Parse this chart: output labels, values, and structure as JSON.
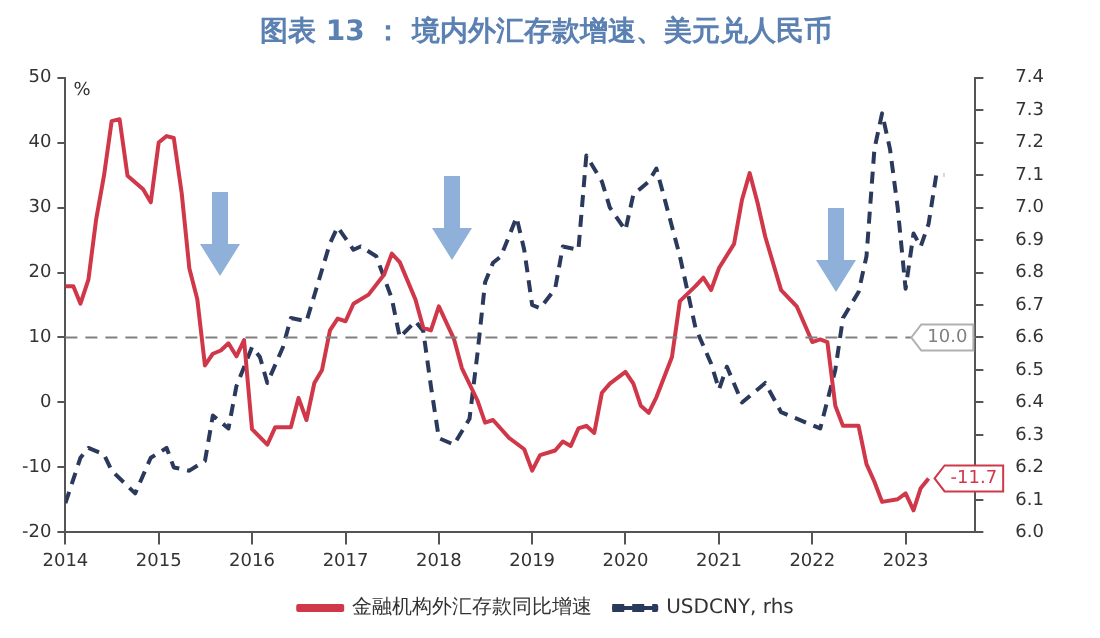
{
  "chart_data": {
    "type": "line",
    "title": "图表 13 ： 境内外汇存款增速、美元兑人民币",
    "ylabel": "%",
    "xlim": [
      "2014-01",
      "2023-10"
    ],
    "xticks": [
      "2014",
      "2015",
      "2016",
      "2017",
      "2018",
      "2019",
      "2020",
      "2021",
      "2022",
      "2023"
    ],
    "ylim": [
      -20,
      50
    ],
    "yticks": [
      -20,
      -10,
      0,
      10,
      20,
      30,
      40,
      50
    ],
    "y2lim": [
      6.0,
      7.4
    ],
    "y2ticks": [
      {
        "value": 6,
        "label": "6.0"
      },
      6.1,
      6.2,
      6.3,
      6.4,
      6.5,
      6.6,
      6.7,
      6.8,
      6.9,
      {
        "value": 7,
        "label": "7.0"
      },
      7.1,
      7.2,
      7.3,
      7.4
    ],
    "grid": false,
    "legend": "bottom",
    "marker": "none",
    "ref_lines": [
      {
        "axis": "y",
        "value": 10,
        "label": "10.0",
        "color": "#808080",
        "line_style": "dashed"
      }
    ],
    "series": [
      {
        "name": "金融机构外汇存款同比增速",
        "color": "#d0384a",
        "line_style": "solid",
        "x": [
          "2014-01",
          "2014-02",
          "2014-03",
          "2014-04",
          "2014-05",
          "2014-06",
          "2014-07",
          "2014-08",
          "2014-09",
          "2014-11",
          "2014-12",
          "2015-01",
          "2015-02",
          "2015-03",
          "2015-04",
          "2015-05",
          "2015-06",
          "2015-07",
          "2015-08",
          "2015-09",
          "2015-10",
          "2015-11",
          "2015-12",
          "2016-01",
          "2016-03",
          "2016-04",
          "2016-06",
          "2016-07",
          "2016-08",
          "2016-09",
          "2016-10",
          "2016-11",
          "2016-12",
          "2017-01",
          "2017-02",
          "2017-04",
          "2017-06",
          "2017-07",
          "2017-08",
          "2017-10",
          "2017-11",
          "2017-12",
          "2018-01",
          "2018-03",
          "2018-04",
          "2018-06",
          "2018-07",
          "2018-08",
          "2018-10",
          "2018-12",
          "2019-01",
          "2019-02",
          "2019-04",
          "2019-05",
          "2019-06",
          "2019-07",
          "2019-08",
          "2019-09",
          "2019-10",
          "2019-11",
          "2020-01",
          "2020-02",
          "2020-03",
          "2020-04",
          "2020-05",
          "2020-07",
          "2020-08",
          "2020-10",
          "2020-11",
          "2020-12",
          "2021-01",
          "2021-03",
          "2021-04",
          "2021-05",
          "2021-06",
          "2021-07",
          "2021-09",
          "2021-11",
          "2022-01",
          "2022-02",
          "2022-03",
          "2022-04",
          "2022-05",
          "2022-07",
          "2022-08",
          "2022-09",
          "2022-10",
          "2022-12",
          "2023-01",
          "2023-02",
          "2023-03",
          "2023-04"
        ],
        "values": [
          17.9,
          17.9,
          15.2,
          18.9,
          28.1,
          34.9,
          43.3,
          43.6,
          34.9,
          32.8,
          30.8,
          40.0,
          41.0,
          40.7,
          32.2,
          20.6,
          15.9,
          5.7,
          7.5,
          8.0,
          9.1,
          7.1,
          9.6,
          -4.1,
          -6.5,
          -3.8,
          -3.8,
          0.7,
          -2.7,
          3.0,
          5.0,
          11.1,
          12.9,
          12.5,
          15.2,
          16.6,
          19.7,
          22.9,
          21.6,
          15.9,
          11.5,
          11.1,
          14.8,
          9.8,
          5.3,
          0.3,
          -3.1,
          -2.7,
          -5.4,
          -7.2,
          -10.5,
          -8.1,
          -7.4,
          -6.0,
          -6.7,
          -4.0,
          -3.6,
          -4.7,
          1.5,
          2.9,
          4.7,
          2.9,
          -0.5,
          -1.6,
          0.8,
          7.0,
          15.6,
          17.9,
          19.2,
          17.3,
          20.7,
          24.4,
          31.2,
          35.3,
          30.7,
          25.5,
          17.3,
          14.8,
          9.3,
          9.7,
          9.3,
          -0.5,
          -3.6,
          -3.6,
          -9.5,
          -12.2,
          -15.3,
          -14.9,
          -14.0,
          -16.6,
          -13.2,
          -11.7
        ],
        "value_labels": [
          null,
          null,
          null,
          null,
          null,
          null,
          null,
          null,
          null,
          null,
          null,
          null,
          null,
          null,
          null,
          null,
          null,
          null,
          null,
          null,
          null,
          null,
          null,
          null,
          null,
          null,
          null,
          null,
          null,
          null,
          null,
          null,
          null,
          null,
          null,
          null,
          null,
          null,
          null,
          null,
          null,
          null,
          null,
          null,
          null,
          null,
          null,
          null,
          null,
          null,
          null,
          null,
          null,
          null,
          null,
          null,
          null,
          null,
          null,
          null,
          null,
          null,
          null,
          null,
          null,
          null,
          null,
          null,
          null,
          null,
          null,
          null,
          null,
          null,
          null,
          null,
          null,
          null,
          null,
          null,
          null,
          null,
          null,
          null,
          null,
          null,
          null,
          null,
          null,
          null,
          null,
          "-11.7"
        ]
      },
      {
        "name": "USDCNY, rhs",
        "color": "#2b3a5c",
        "line_style": "dashed",
        "axis": "y2",
        "x": [
          "2014-01",
          "2014-03",
          "2014-04",
          "2014-06",
          "2014-07",
          "2014-10",
          "2014-12",
          "2015-02",
          "2015-03",
          "2015-05",
          "2015-07",
          "2015-08",
          "2015-10",
          "2015-11",
          "2016-01",
          "2016-02",
          "2016-03",
          "2016-05",
          "2016-06",
          "2016-08",
          "2016-09",
          "2016-11",
          "2016-12",
          "2017-02",
          "2017-03",
          "2017-05",
          "2017-07",
          "2017-08",
          "2017-10",
          "2017-11",
          "2017-12",
          "2018-01",
          "2018-03",
          "2018-05",
          "2018-06",
          "2018-07",
          "2018-08",
          "2018-09",
          "2018-11",
          "2018-12",
          "2019-01",
          "2019-02",
          "2019-04",
          "2019-05",
          "2019-07",
          "2019-08",
          "2019-10",
          "2019-11",
          "2020-01",
          "2020-02",
          "2020-04",
          "2020-05",
          "2020-06",
          "2020-08",
          "2020-10",
          "2020-12",
          "2021-01",
          "2021-02",
          "2021-04",
          "2021-06",
          "2021-07",
          "2021-09",
          "2021-11",
          "2022-01",
          "2022-02",
          "2022-04",
          "2022-05",
          "2022-07",
          "2022-08",
          "2022-09",
          "2022-10",
          "2022-11",
          "2022-12",
          "2023-01",
          "2023-02",
          "2023-03",
          "2023-04",
          "2023-05",
          "2023-06"
        ],
        "values": [
          6.09,
          6.23,
          6.26,
          6.24,
          6.19,
          6.12,
          6.23,
          6.26,
          6.2,
          6.19,
          6.22,
          6.36,
          6.32,
          6.45,
          6.57,
          6.54,
          6.46,
          6.57,
          6.66,
          6.65,
          6.73,
          6.89,
          6.94,
          6.87,
          6.88,
          6.85,
          6.72,
          6.6,
          6.65,
          6.62,
          6.45,
          6.29,
          6.27,
          6.35,
          6.55,
          6.77,
          6.83,
          6.85,
          6.97,
          6.87,
          6.7,
          6.69,
          6.75,
          6.88,
          6.87,
          7.16,
          7.08,
          7.0,
          6.93,
          7.04,
          7.08,
          7.12,
          7.03,
          6.85,
          6.63,
          6.52,
          6.44,
          6.51,
          6.4,
          6.44,
          6.46,
          6.37,
          6.35,
          6.33,
          6.32,
          6.5,
          6.66,
          6.74,
          6.85,
          7.18,
          7.29,
          7.18,
          7.0,
          6.75,
          6.92,
          6.88,
          6.95,
          7.1,
          7.1
        ]
      }
    ]
  }
}
